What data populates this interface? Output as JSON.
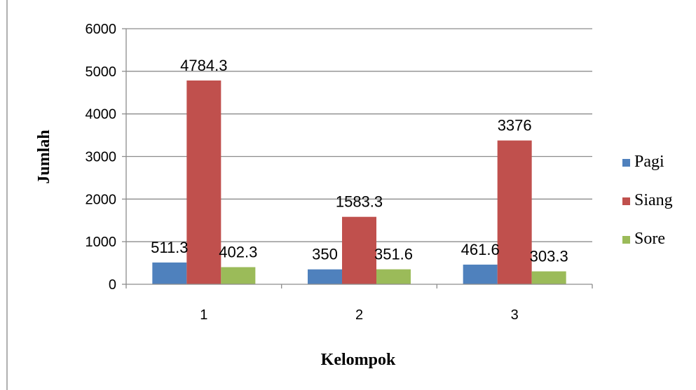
{
  "chart_data": {
    "type": "bar",
    "categories": [
      "1",
      "2",
      "3"
    ],
    "series": [
      {
        "name": "Pagi",
        "values": [
          511.3,
          350,
          461.6
        ],
        "labels": [
          "511.3",
          "350",
          "461.6"
        ],
        "color": "#4f81bd"
      },
      {
        "name": "Siang",
        "values": [
          4784.3,
          1583.3,
          3376
        ],
        "labels": [
          "4784.3",
          "1583.3",
          "3376"
        ],
        "color": "#c0504d"
      },
      {
        "name": "Sore",
        "values": [
          402.3,
          351.6,
          303.3
        ],
        "labels": [
          "402.3",
          "351.6",
          "303.3"
        ],
        "color": "#9bbb59"
      }
    ],
    "xlabel": "Kelompok",
    "ylabel": "Jumlah",
    "ylim": [
      0,
      6000
    ],
    "yticks": [
      0,
      1000,
      2000,
      3000,
      4000,
      5000,
      6000
    ],
    "grid": true,
    "legend": "right"
  }
}
